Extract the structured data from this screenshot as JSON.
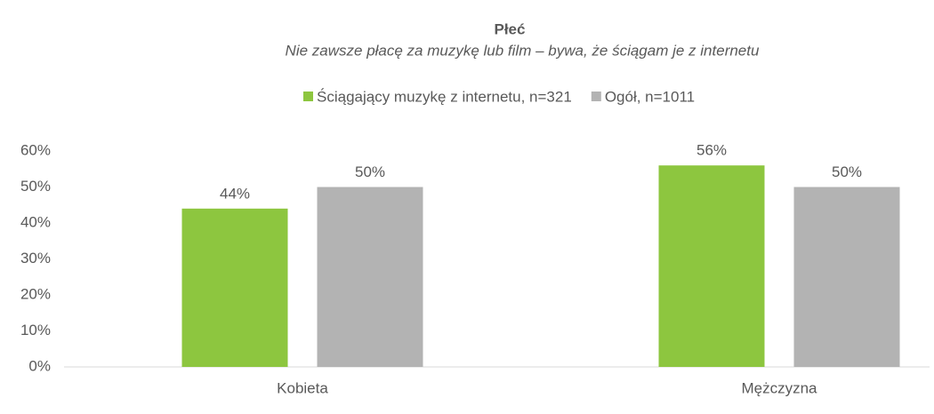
{
  "chart_data": {
    "type": "bar",
    "title": "Płeć",
    "subtitle": "Nie zawsze płacę za muzykę lub film – bywa, że ściągam je z internetu",
    "categories": [
      "Kobieta",
      "Mężczyzna"
    ],
    "series": [
      {
        "name": "Ściągający muzykę z internetu, n=321",
        "color": "#8dc63f",
        "values": [
          44,
          56
        ],
        "value_labels": [
          "44%",
          "56%"
        ]
      },
      {
        "name": "Ogół, n=1011",
        "color": "#b3b3b3",
        "values": [
          50,
          50
        ],
        "value_labels": [
          "50%",
          "50%"
        ]
      }
    ],
    "ylim": [
      0,
      60
    ],
    "yticks": [
      {
        "value": 0,
        "label": "0%"
      },
      {
        "value": 10,
        "label": "10%"
      },
      {
        "value": 20,
        "label": "20%"
      },
      {
        "value": 30,
        "label": "30%"
      },
      {
        "value": 40,
        "label": "40%"
      },
      {
        "value": 50,
        "label": "50%"
      },
      {
        "value": 60,
        "label": "60%"
      }
    ],
    "legend": "top"
  }
}
